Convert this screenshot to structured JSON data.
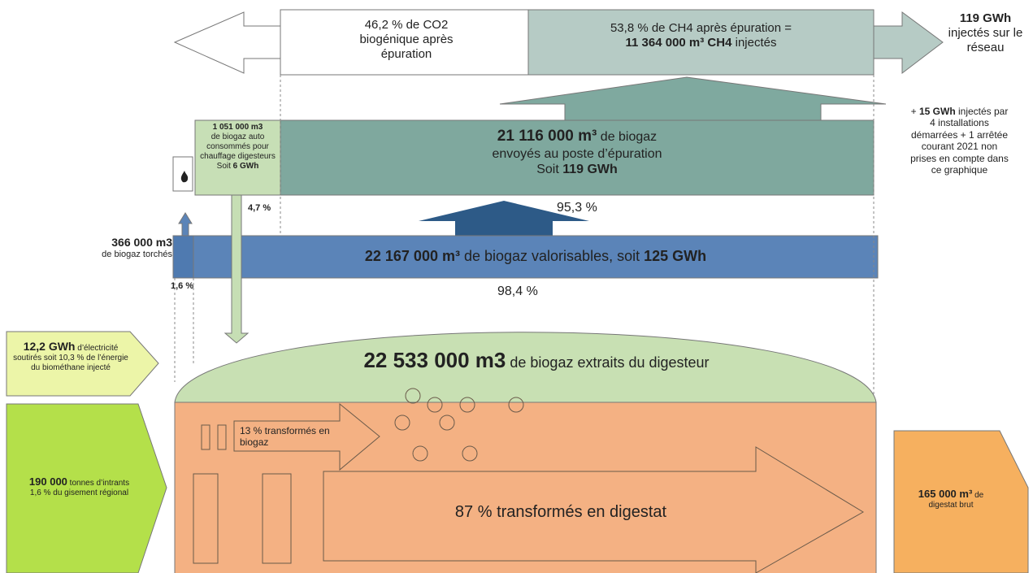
{
  "co2": {
    "lines": [
      "46,2 % de CO2",
      "biogénique après",
      "épuration"
    ]
  },
  "ch4": {
    "line1": "53,8 % de CH4 après épuration =",
    "volume": "11 364 000 m³ CH4",
    "suffix": " injectés"
  },
  "injected": {
    "energy": "119 GWh",
    "text": "injectés sur le réseau"
  },
  "note": {
    "prefix": "+ ",
    "energy": "15 GWh",
    "text": " injectés par 4 installations démarrées + 1 arrêtée courant 2021 non prises en compte dans ce graphique"
  },
  "self_consumed": {
    "volume": "1 051 000 m3",
    "text": "de biogaz auto consommés pour chauffage digesteurs",
    "prefix": "Soit ",
    "energy": "6 GWh",
    "share": "4,7 %"
  },
  "purification": {
    "volume": "21 116 000 m³",
    "suffix": " de biogaz",
    "text": "envoyés au poste d’épuration",
    "prefix": "Soit ",
    "energy": "119 GWh",
    "share": "95,3 %"
  },
  "flared": {
    "volume": "366 000 m3",
    "text": "de biogaz torchés",
    "share": "1,6 %"
  },
  "usable": {
    "volume": "22 167 000 m³",
    "text": " de biogaz valorisables, soit ",
    "energy": "125 GWh",
    "share": "98,4 %"
  },
  "extracted": {
    "volume": "22 533 000 m3",
    "text": " de biogaz extraits du digesteur"
  },
  "electricity": {
    "energy": "12,2 GWh",
    "text": " d’électricité soutirés soit 10,3 % de l’énergie du biométhane injecté"
  },
  "inputs": {
    "tonnage": "190 000",
    "text": " tonnes d’intrants",
    "share": "1,6 % du gisement régional"
  },
  "to_biogas": "13 % transformés en biogaz",
  "to_digestate": "87 % transformés en digestat",
  "digestate": {
    "volume": "165 000 m³",
    "text": " de",
    "label": "digestat brut"
  }
}
